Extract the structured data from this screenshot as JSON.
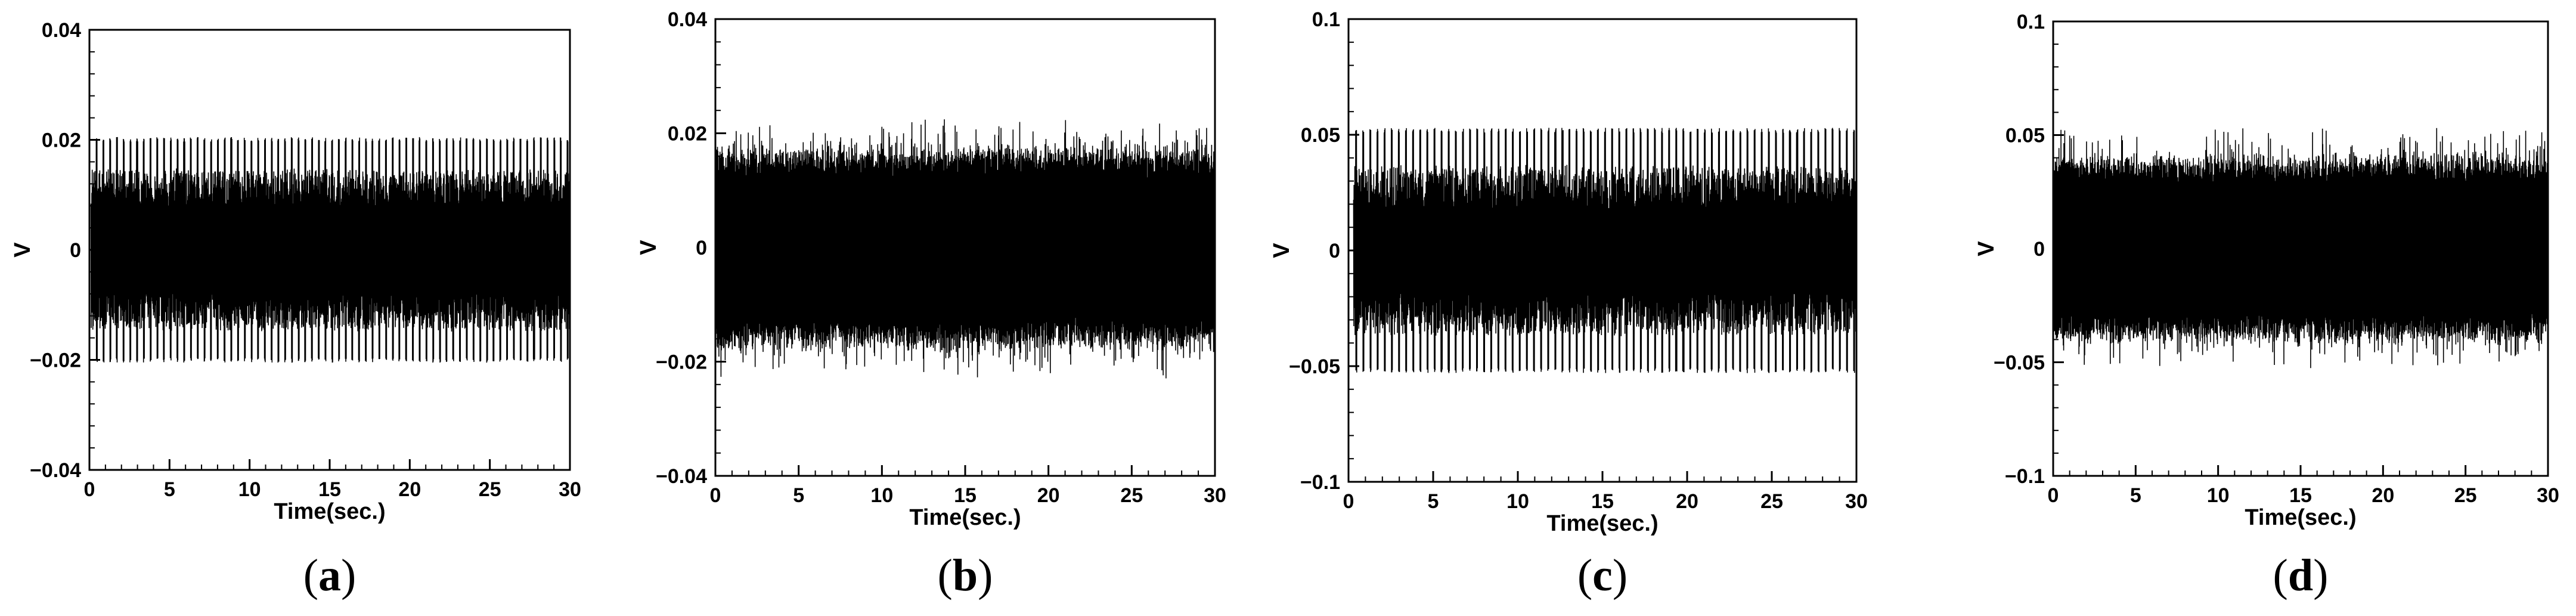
{
  "chart_data": [
    {
      "type": "line",
      "panel_label": "a",
      "xlabel": "Time(sec.)",
      "ylabel": "V",
      "xlim": [
        0,
        30
      ],
      "ylim": [
        -0.04,
        0.04
      ],
      "xticks": [
        0,
        5,
        10,
        15,
        20,
        25,
        30
      ],
      "xtick_labels": [
        "0",
        "5",
        "10",
        "15",
        "20",
        "25",
        "30"
      ],
      "yticks": [
        -0.04,
        -0.02,
        0,
        0.02,
        0.04
      ],
      "ytick_labels": [
        "−0.04",
        "−0.02",
        "0",
        "0.02",
        "0.04"
      ],
      "series": [
        {
          "signal": "periodic",
          "start": 0.1,
          "amplitude": 0.0205,
          "inner_amplitude": 0.008,
          "noise": 0.0,
          "cycle_sec": 0.42,
          "color": "#000000"
        }
      ]
    },
    {
      "type": "line",
      "panel_label": "b",
      "xlabel": "Time(sec.)",
      "ylabel": "V",
      "xlim": [
        0,
        30
      ],
      "ylim": [
        -0.04,
        0.04
      ],
      "xticks": [
        0,
        5,
        10,
        15,
        20,
        25,
        30
      ],
      "xtick_labels": [
        "0",
        "5",
        "10",
        "15",
        "20",
        "25",
        "30"
      ],
      "yticks": [
        -0.04,
        -0.02,
        0,
        0.02,
        0.04
      ],
      "ytick_labels": [
        "−0.04",
        "−0.02",
        "0",
        "0.02",
        "0.04"
      ],
      "series": [
        {
          "signal": "noisy",
          "start": 0.0,
          "amplitude": 0.0165,
          "inner_amplitude": 0.012,
          "noise": 0.0045,
          "cycle_sec": 0.42,
          "color": "#000000"
        }
      ]
    },
    {
      "type": "line",
      "panel_label": "c",
      "xlabel": "Time(sec.)",
      "ylabel": "V",
      "xlim": [
        0,
        30
      ],
      "ylim": [
        -0.1,
        0.1
      ],
      "xticks": [
        0,
        5,
        10,
        15,
        20,
        25,
        30
      ],
      "xtick_labels": [
        "0",
        "5",
        "10",
        "15",
        "20",
        "25",
        "30"
      ],
      "yticks": [
        -0.1,
        -0.05,
        0,
        0.05,
        0.1
      ],
      "ytick_labels": [
        "−0.1",
        "−0.05",
        "0",
        "0.05",
        "0.1"
      ],
      "series": [
        {
          "signal": "periodic",
          "start": 0.3,
          "amplitude": 0.053,
          "inner_amplitude": 0.018,
          "noise": 0.0,
          "cycle_sec": 0.42,
          "color": "#000000"
        }
      ]
    },
    {
      "type": "line",
      "panel_label": "d",
      "xlabel": "Time(sec.)",
      "ylabel": "V",
      "xlim": [
        0,
        30
      ],
      "ylim": [
        -0.1,
        0.1
      ],
      "xticks": [
        0,
        5,
        10,
        15,
        20,
        25,
        30
      ],
      "xtick_labels": [
        "0",
        "5",
        "10",
        "15",
        "20",
        "25",
        "30"
      ],
      "yticks": [
        -0.1,
        -0.05,
        0,
        0.05,
        0.1
      ],
      "ytick_labels": [
        "−0.1",
        "−0.05",
        "0",
        "0.05",
        "0.1"
      ],
      "series": [
        {
          "signal": "noisy",
          "start": 0.0,
          "amplitude": 0.038,
          "inner_amplitude": 0.028,
          "noise": 0.011,
          "cycle_sec": 0.42,
          "color": "#000000"
        }
      ]
    }
  ]
}
